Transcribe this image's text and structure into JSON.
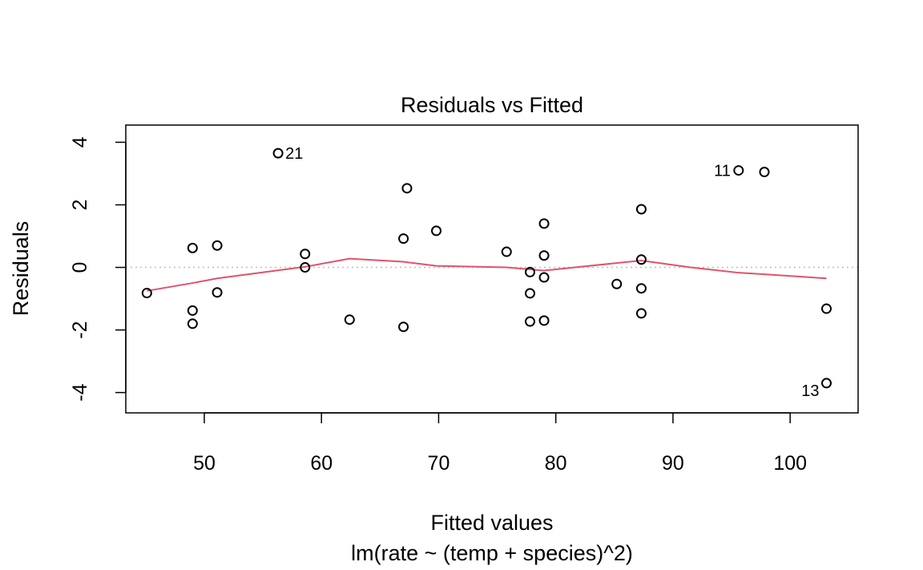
{
  "chart_data": {
    "type": "scatter",
    "title": "Residuals vs Fitted",
    "xlabel": "Fitted values",
    "subtitle": "lm(rate ~ (temp + species)^2)",
    "ylabel": "Residuals",
    "xlim": [
      43.3,
      105.8
    ],
    "ylim": [
      -4.65,
      4.55
    ],
    "xticks": [
      50,
      60,
      70,
      80,
      90,
      100
    ],
    "yticks": [
      -4,
      -2,
      0,
      2,
      4
    ],
    "x_tick_labels": [
      "50",
      "60",
      "70",
      "80",
      "90",
      "100"
    ],
    "y_tick_labels": [
      "-4",
      "-2",
      "0",
      "2",
      "4"
    ],
    "points": [
      {
        "x": 45.1,
        "y": -0.82
      },
      {
        "x": 49.0,
        "y": 0.62
      },
      {
        "x": 49.0,
        "y": -1.38
      },
      {
        "x": 49.0,
        "y": -1.8
      },
      {
        "x": 51.1,
        "y": 0.7
      },
      {
        "x": 51.1,
        "y": -0.8
      },
      {
        "x": 56.3,
        "y": 3.65
      },
      {
        "x": 58.6,
        "y": 0.43
      },
      {
        "x": 58.6,
        "y": 0.0
      },
      {
        "x": 62.4,
        "y": -1.67
      },
      {
        "x": 67.0,
        "y": 0.92
      },
      {
        "x": 67.0,
        "y": -1.9
      },
      {
        "x": 67.3,
        "y": 2.53
      },
      {
        "x": 69.8,
        "y": 1.17
      },
      {
        "x": 75.8,
        "y": 0.5
      },
      {
        "x": 77.8,
        "y": -0.15
      },
      {
        "x": 77.8,
        "y": -0.83
      },
      {
        "x": 77.8,
        "y": -1.73
      },
      {
        "x": 79.0,
        "y": 1.4
      },
      {
        "x": 79.0,
        "y": 0.38
      },
      {
        "x": 79.0,
        "y": -0.32
      },
      {
        "x": 79.0,
        "y": -1.7
      },
      {
        "x": 85.2,
        "y": -0.53
      },
      {
        "x": 87.3,
        "y": 1.86
      },
      {
        "x": 87.3,
        "y": 0.25
      },
      {
        "x": 87.3,
        "y": -0.67
      },
      {
        "x": 87.3,
        "y": -1.47
      },
      {
        "x": 95.6,
        "y": 3.1
      },
      {
        "x": 97.8,
        "y": 3.05
      },
      {
        "x": 103.1,
        "y": -1.32
      },
      {
        "x": 103.1,
        "y": -3.7
      }
    ],
    "point_labels": [
      {
        "text": "21",
        "x": 56.3,
        "y": 3.65,
        "side": "right"
      },
      {
        "text": "11",
        "x": 95.6,
        "y": 3.1,
        "side": "left"
      },
      {
        "text": "13",
        "x": 103.1,
        "y": -3.7,
        "side": "left-below"
      }
    ],
    "smoother": {
      "x": [
        45.1,
        49.0,
        51.1,
        58.6,
        62.4,
        67.0,
        69.8,
        75.8,
        79.0,
        87.3,
        91.5,
        95.6,
        97.8,
        103.1
      ],
      "y": [
        -0.75,
        -0.5,
        -0.35,
        0.02,
        0.28,
        0.18,
        0.05,
        0.0,
        -0.1,
        0.22,
        0.0,
        -0.17,
        -0.22,
        -0.35
      ],
      "color": "#DF536B"
    },
    "reference_line": {
      "y": 0,
      "style": "dotted",
      "color": "#BEBEBE"
    },
    "grid": false,
    "legend": "none"
  }
}
